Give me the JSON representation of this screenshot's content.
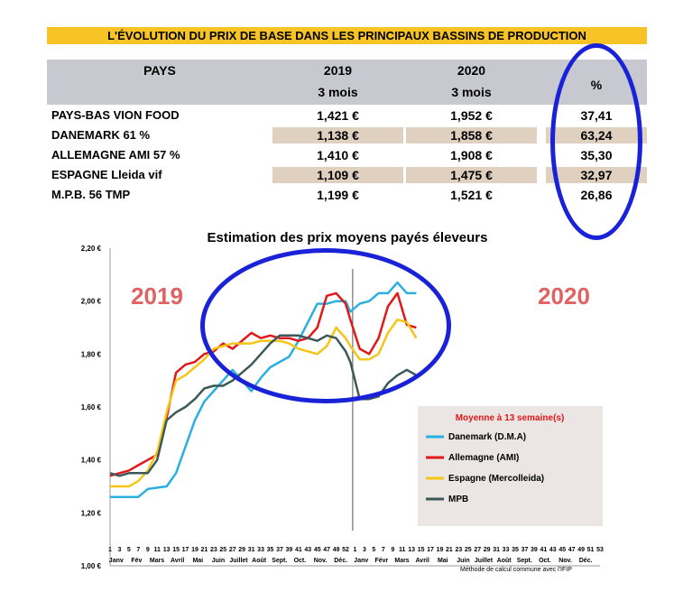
{
  "banner": "L'ÉVOLUTION DU PRIX DE BASE DANS LES PRINCIPAUX BASSINS DE PRODUCTION",
  "table": {
    "headers": {
      "pays": "PAYS",
      "y2019": "2019",
      "y2019_sub": "3 mois",
      "y2020": "2020",
      "y2020_sub": "3 mois",
      "pct": "%"
    },
    "rows": [
      {
        "pays": "PAYS-BAS VION FOOD",
        "v2019": "1,421 €",
        "v2020": "1,952 €",
        "pct": "37,41"
      },
      {
        "pays": "DANEMARK  61 %",
        "v2019": "1,138 €",
        "v2020": "1,858 €",
        "pct": "63,24"
      },
      {
        "pays": "ALLEMAGNE AMI 57 %",
        "v2019": "1,410 €",
        "v2020": "1,908 €",
        "pct": "35,30"
      },
      {
        "pays": "ESPAGNE Lleida vif",
        "v2019": "1,109 €",
        "v2020": "1,475 €",
        "pct": "32,97"
      },
      {
        "pays": "M.P.B. 56 TMP",
        "v2019": "1,199 €",
        "v2020": "1,521 €",
        "pct": "26,86"
      }
    ]
  },
  "colors": {
    "banner": "#f7c325",
    "header": "#c8c8d0",
    "row_alt": "#dfd0c0",
    "row_plain": "#ffffff",
    "circle": "#1a22d8"
  },
  "chart_data": {
    "type": "line",
    "title": "Estimation des prix moyens payés éleveurs",
    "ylim": [
      1.0,
      2.2
    ],
    "y_ticks": [
      "1,00 €",
      "1,20 €",
      "1,40 €",
      "1,60 €",
      "1,80 €",
      "2,00 €",
      "2,20 €"
    ],
    "y_tick_values": [
      1.0,
      1.2,
      1.4,
      1.6,
      1.8,
      2.0,
      2.2
    ],
    "week_ticks": [
      "1",
      "3",
      "5",
      "7",
      "9",
      "11",
      "13",
      "15",
      "17",
      "19",
      "21",
      "23",
      "25",
      "27",
      "29",
      "31",
      "33",
      "35",
      "37",
      "39",
      "41",
      "43",
      "45",
      "47",
      "49",
      "52",
      "1",
      "3",
      "5",
      "7",
      "9",
      "11",
      "13",
      "15",
      "17",
      "19",
      "21",
      "23",
      "25",
      "27",
      "29",
      "31",
      "33",
      "35",
      "37",
      "39",
      "41",
      "43",
      "45",
      "47",
      "49",
      "51",
      "53"
    ],
    "months": [
      "Janv",
      "Fév",
      "Mars",
      "Avril",
      "Mai",
      "Juin",
      "Juillet",
      "Août",
      "Sept.",
      "Oct.",
      "Nov.",
      "Déc.",
      "Janv",
      "Févr",
      "Mars",
      "Avril",
      "Mai",
      "Juin",
      "Juillet",
      "Août",
      "Sept.",
      "Oct.",
      "Nov.",
      "Déc."
    ],
    "year_labels": [
      "2019",
      "2020"
    ],
    "legend_title": "Moyenne à  13 semaine(s)",
    "legend_position": "bottom-right",
    "footnote": "Méthode de calcul commune avec l'IFIP",
    "grid": false,
    "x_range": [
      1,
      105
    ],
    "separator_x": 52.5,
    "series": [
      {
        "name": "Danemark (D.M.A)",
        "color": "#29b0e0",
        "x": [
          1,
          7,
          9,
          13,
          15,
          19,
          21,
          27,
          29,
          31,
          33,
          35,
          37,
          39,
          41,
          43,
          45,
          47,
          49,
          51,
          52,
          54,
          56,
          58,
          60,
          62,
          64,
          66
        ],
        "y": [
          1.26,
          1.26,
          1.29,
          1.3,
          1.35,
          1.55,
          1.62,
          1.74,
          1.7,
          1.66,
          1.71,
          1.75,
          1.77,
          1.79,
          1.85,
          1.92,
          1.99,
          1.99,
          2.0,
          2.0,
          1.96,
          1.99,
          2.0,
          2.03,
          2.03,
          2.07,
          2.03,
          2.03
        ]
      },
      {
        "name": "Allemagne (AMI)",
        "color": "#e01818",
        "x": [
          1,
          3,
          5,
          7,
          9,
          11,
          13,
          15,
          17,
          19,
          21,
          23,
          25,
          27,
          29,
          31,
          33,
          35,
          37,
          39,
          41,
          43,
          45,
          47,
          49,
          51,
          52,
          54,
          56,
          58,
          60,
          62,
          64,
          66
        ],
        "y": [
          1.34,
          1.35,
          1.36,
          1.38,
          1.4,
          1.42,
          1.56,
          1.73,
          1.76,
          1.77,
          1.8,
          1.81,
          1.84,
          1.82,
          1.85,
          1.88,
          1.86,
          1.87,
          1.86,
          1.86,
          1.85,
          1.86,
          1.9,
          2.02,
          2.03,
          1.99,
          1.93,
          1.82,
          1.8,
          1.86,
          1.98,
          2.03,
          1.91,
          1.9
        ]
      },
      {
        "name": "Espagne (Mercolleida)",
        "color": "#f5c518",
        "x": [
          1,
          3,
          5,
          7,
          9,
          11,
          13,
          15,
          17,
          19,
          21,
          23,
          25,
          27,
          29,
          31,
          33,
          35,
          37,
          39,
          41,
          43,
          45,
          47,
          49,
          51,
          52,
          54,
          56,
          58,
          60,
          62,
          64,
          66
        ],
        "y": [
          1.3,
          1.3,
          1.3,
          1.32,
          1.36,
          1.43,
          1.58,
          1.7,
          1.72,
          1.75,
          1.78,
          1.82,
          1.83,
          1.84,
          1.84,
          1.84,
          1.85,
          1.85,
          1.85,
          1.84,
          1.82,
          1.81,
          1.8,
          1.83,
          1.9,
          1.86,
          1.83,
          1.78,
          1.78,
          1.8,
          1.88,
          1.93,
          1.92,
          1.86
        ]
      },
      {
        "name": "MPB",
        "color": "#3c5858",
        "x": [
          1,
          3,
          5,
          7,
          9,
          11,
          13,
          15,
          17,
          19,
          21,
          23,
          25,
          27,
          29,
          31,
          33,
          35,
          37,
          39,
          41,
          43,
          45,
          47,
          49,
          51,
          52,
          54,
          56,
          58,
          60,
          62,
          64,
          66
        ],
        "y": [
          1.35,
          1.34,
          1.35,
          1.35,
          1.35,
          1.4,
          1.55,
          1.58,
          1.6,
          1.63,
          1.67,
          1.68,
          1.68,
          1.7,
          1.73,
          1.76,
          1.8,
          1.84,
          1.87,
          1.87,
          1.87,
          1.86,
          1.85,
          1.87,
          1.86,
          1.81,
          1.77,
          1.63,
          1.63,
          1.64,
          1.69,
          1.72,
          1.74,
          1.72
        ]
      }
    ]
  }
}
